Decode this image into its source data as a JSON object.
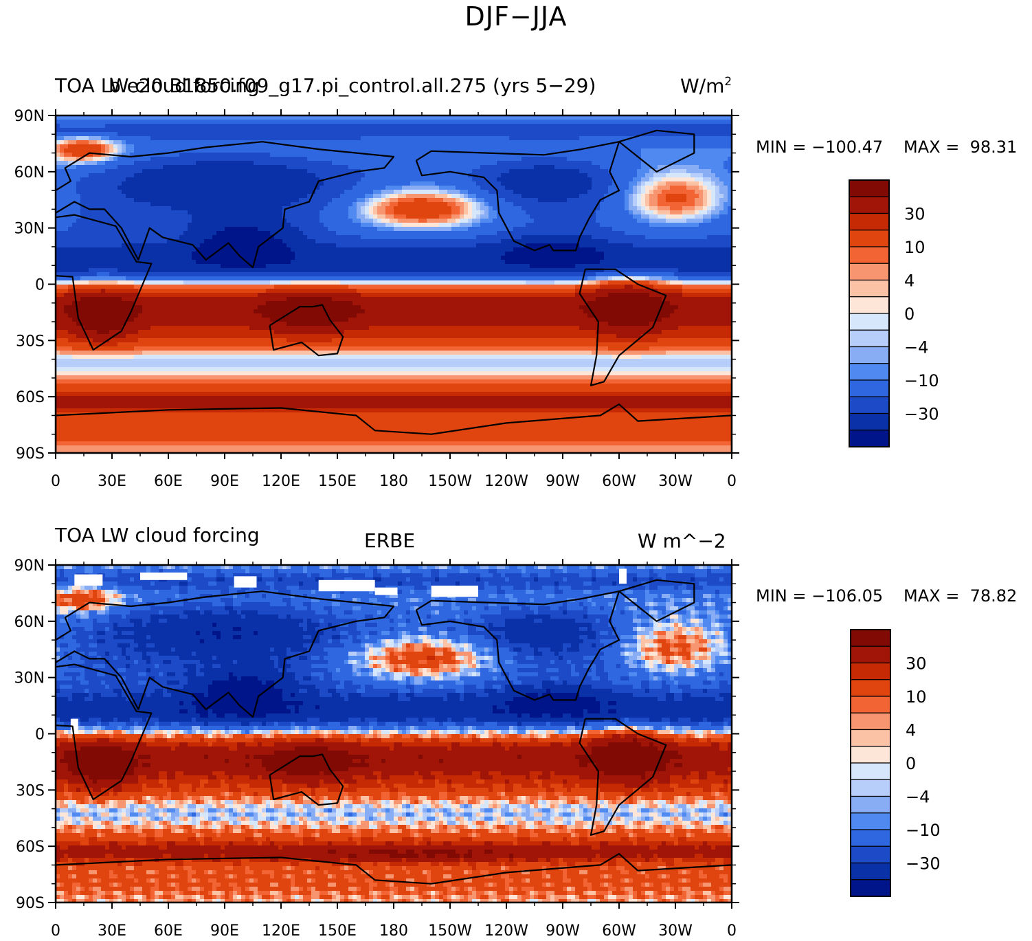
{
  "title": "DJF−JJA",
  "colormap": [
    "#00158a",
    "#0b31a8",
    "#1d4bc8",
    "#2f67e0",
    "#5089ef",
    "#89adf5",
    "#b7cefa",
    "#d6e6fb",
    "#fde6d8",
    "#fbc2a6",
    "#f79570",
    "#f26434",
    "#e0440f",
    "#c62a04",
    "#a01508",
    "#820a04"
  ],
  "panels": [
    {
      "id": "model",
      "left_title": "TOA LW cloud forcing",
      "center_title": "b.e20.B1850.f09_g17.pi_control.all.275 (yrs 5−29)",
      "right_title": "W/m",
      "right_title_sup": "2",
      "min_label": "MIN = −100.47",
      "max_label": "MAX =  98.31",
      "colorbar_labels": [
        "30",
        "10",
        "4",
        "0",
        "−4",
        "−10",
        "−30"
      ]
    },
    {
      "id": "obs",
      "left_title": "TOA LW cloud forcing",
      "center_title": "ERBE",
      "right_title": "W m^−2",
      "right_title_sup": "",
      "min_label": "MIN = −106.05",
      "max_label": "MAX =  78.82",
      "colorbar_labels": [
        "30",
        "10",
        "4",
        "0",
        "−4",
        "−10",
        "−30"
      ]
    }
  ],
  "x_tick_labels": [
    "0",
    "30E",
    "60E",
    "90E",
    "120E",
    "150E",
    "180",
    "150W",
    "120W",
    "90W",
    "60W",
    "30W",
    "0"
  ],
  "y_tick_labels": [
    "90N",
    "60N",
    "30N",
    "0",
    "30S",
    "60S",
    "90S"
  ]
}
